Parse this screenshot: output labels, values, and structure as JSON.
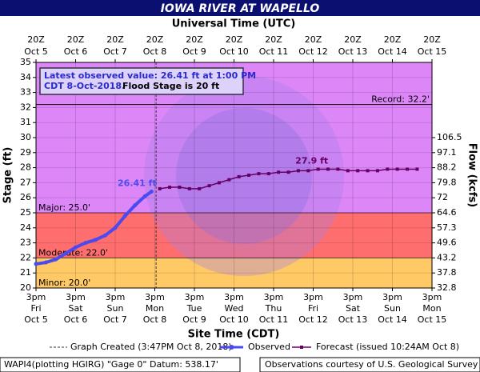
{
  "chart_data": {
    "type": "line",
    "title": "IOWA RIVER AT WAPELLO",
    "top_axis_label": "Universal Time (UTC)",
    "x_label": "Site Time (CDT)",
    "y_label": "Stage (ft)",
    "y2_label": "Flow (kcfs)",
    "xlim": [
      "2018-10-05T15:00",
      "2018-10-15T15:00"
    ],
    "xticks": [
      {
        "value": "2018-10-05T15:00",
        "label": [
          "3pm",
          "Fri",
          "Oct 5"
        ],
        "utc": [
          "20Z",
          "Oct 5"
        ]
      },
      {
        "value": "2018-10-06T15:00",
        "label": [
          "3pm",
          "Sat",
          "Oct 6"
        ],
        "utc": [
          "20Z",
          "Oct 6"
        ]
      },
      {
        "value": "2018-10-07T15:00",
        "label": [
          "3pm",
          "Sun",
          "Oct 7"
        ],
        "utc": [
          "20Z",
          "Oct 7"
        ]
      },
      {
        "value": "2018-10-08T15:00",
        "label": [
          "3pm",
          "Mon",
          "Oct 8"
        ],
        "utc": [
          "20Z",
          "Oct 8"
        ]
      },
      {
        "value": "2018-10-09T15:00",
        "label": [
          "3pm",
          "Tue",
          "Oct 9"
        ],
        "utc": [
          "20Z",
          "Oct 9"
        ]
      },
      {
        "value": "2018-10-10T15:00",
        "label": [
          "3pm",
          "Wed",
          "Oct 10"
        ],
        "utc": [
          "20Z",
          "Oct 10"
        ]
      },
      {
        "value": "2018-10-11T15:00",
        "label": [
          "3pm",
          "Thu",
          "Oct 11"
        ],
        "utc": [
          "20Z",
          "Oct 11"
        ]
      },
      {
        "value": "2018-10-12T15:00",
        "label": [
          "3pm",
          "Fri",
          "Oct 12"
        ],
        "utc": [
          "20Z",
          "Oct 12"
        ]
      },
      {
        "value": "2018-10-13T15:00",
        "label": [
          "3pm",
          "Sat",
          "Oct 13"
        ],
        "utc": [
          "20Z",
          "Oct 13"
        ]
      },
      {
        "value": "2018-10-14T15:00",
        "label": [
          "3pm",
          "Sun",
          "Oct 14"
        ],
        "utc": [
          "20Z",
          "Oct 14"
        ]
      },
      {
        "value": "2018-10-15T15:00",
        "label": [
          "3pm",
          "Mon",
          "Oct 15"
        ],
        "utc": [
          "20Z",
          "Oct 15"
        ]
      }
    ],
    "ylim": [
      20,
      35
    ],
    "yticks": [
      20,
      21,
      22,
      23,
      24,
      25,
      26,
      27,
      28,
      29,
      30,
      31,
      32,
      33,
      34,
      35
    ],
    "y2ticks": [
      32.8,
      37.8,
      43.2,
      49.6,
      57.3,
      64.6,
      72.0,
      79.8,
      88.2,
      97.1,
      106.5
    ],
    "grid": true,
    "levels": [
      {
        "label": "Minor: 20.0'",
        "value": 20,
        "color": "#ffc966"
      },
      {
        "label": "Moderate: 22.0'",
        "value": 22,
        "color": "#ff6e6e"
      },
      {
        "label": "Major: 25.0'",
        "value": 25,
        "color": "#dc86f7"
      }
    ],
    "record": {
      "label": "Record: 32.2'",
      "value": 32.2
    },
    "created": "2018-10-08T15:47",
    "info": {
      "line1": "Latest observed value: 26.41 ft at 1:00 PM",
      "line2": "CDT 8-Oct-2018.",
      "line3": "Flood Stage is 20 ft"
    },
    "legend": {
      "created": "Graph Created (3:47PM Oct 8, 2018)"
    },
    "series": [
      {
        "name": "Observed",
        "color": "#4a4af0",
        "label": "26.41 ft",
        "x": [
          "2018-10-05T15:00",
          "2018-10-05T21:00",
          "2018-10-06T03:00",
          "2018-10-06T09:00",
          "2018-10-06T15:00",
          "2018-10-06T21:00",
          "2018-10-07T03:00",
          "2018-10-07T09:00",
          "2018-10-07T15:00",
          "2018-10-07T21:00",
          "2018-10-08T03:00",
          "2018-10-08T09:00",
          "2018-10-08T13:00"
        ],
        "values": [
          21.6,
          21.7,
          21.9,
          22.3,
          22.7,
          23.0,
          23.2,
          23.5,
          24.0,
          24.8,
          25.5,
          26.1,
          26.41
        ]
      },
      {
        "name": "Forecast (issued 10:24AM Oct 8)",
        "color": "#660066",
        "label": "27.9 ft",
        "x": [
          "2018-10-08T18:00",
          "2018-10-09T00:00",
          "2018-10-09T06:00",
          "2018-10-09T12:00",
          "2018-10-09T18:00",
          "2018-10-10T00:00",
          "2018-10-10T06:00",
          "2018-10-10T12:00",
          "2018-10-10T18:00",
          "2018-10-11T00:00",
          "2018-10-11T06:00",
          "2018-10-11T12:00",
          "2018-10-11T18:00",
          "2018-10-12T00:00",
          "2018-10-12T06:00",
          "2018-10-12T12:00",
          "2018-10-12T18:00",
          "2018-10-13T00:00",
          "2018-10-13T06:00",
          "2018-10-13T12:00",
          "2018-10-13T18:00",
          "2018-10-14T00:00",
          "2018-10-14T06:00",
          "2018-10-14T12:00",
          "2018-10-14T18:00",
          "2018-10-15T00:00",
          "2018-10-15T06:00"
        ],
        "values": [
          26.6,
          26.7,
          26.7,
          26.6,
          26.6,
          26.8,
          27.0,
          27.2,
          27.4,
          27.5,
          27.6,
          27.6,
          27.7,
          27.7,
          27.8,
          27.8,
          27.9,
          27.9,
          27.9,
          27.8,
          27.8,
          27.8,
          27.8,
          27.9,
          27.9,
          27.9,
          27.9
        ]
      }
    ],
    "footer": {
      "left": "WAPI4(plotting HGIRG) \"Gage 0\" Datum: 538.17'",
      "right": "Observations courtesy of U.S. Geological Survey"
    }
  }
}
